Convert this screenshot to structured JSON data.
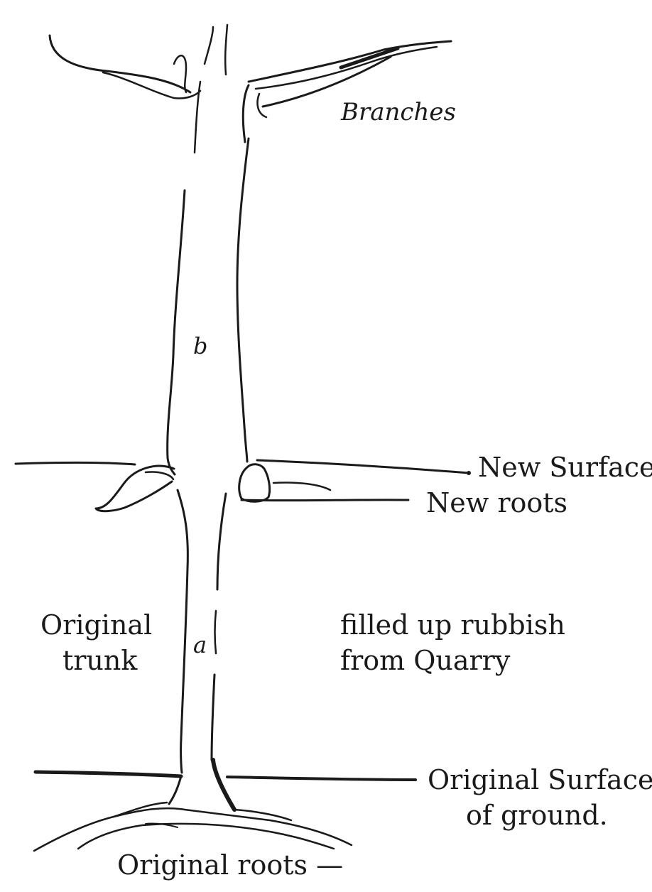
{
  "labels": {
    "branches": "Branches",
    "b": "b",
    "new_surface": "New Surface",
    "new_roots": "New roots",
    "original_trunk": [
      "Original",
      "trunk"
    ],
    "a": "a",
    "rubbish": [
      "filled up rubbish",
      "from Quarry"
    ],
    "original_surface": [
      "Original Surface",
      "of ground."
    ],
    "original_roots": "Original roots —"
  }
}
